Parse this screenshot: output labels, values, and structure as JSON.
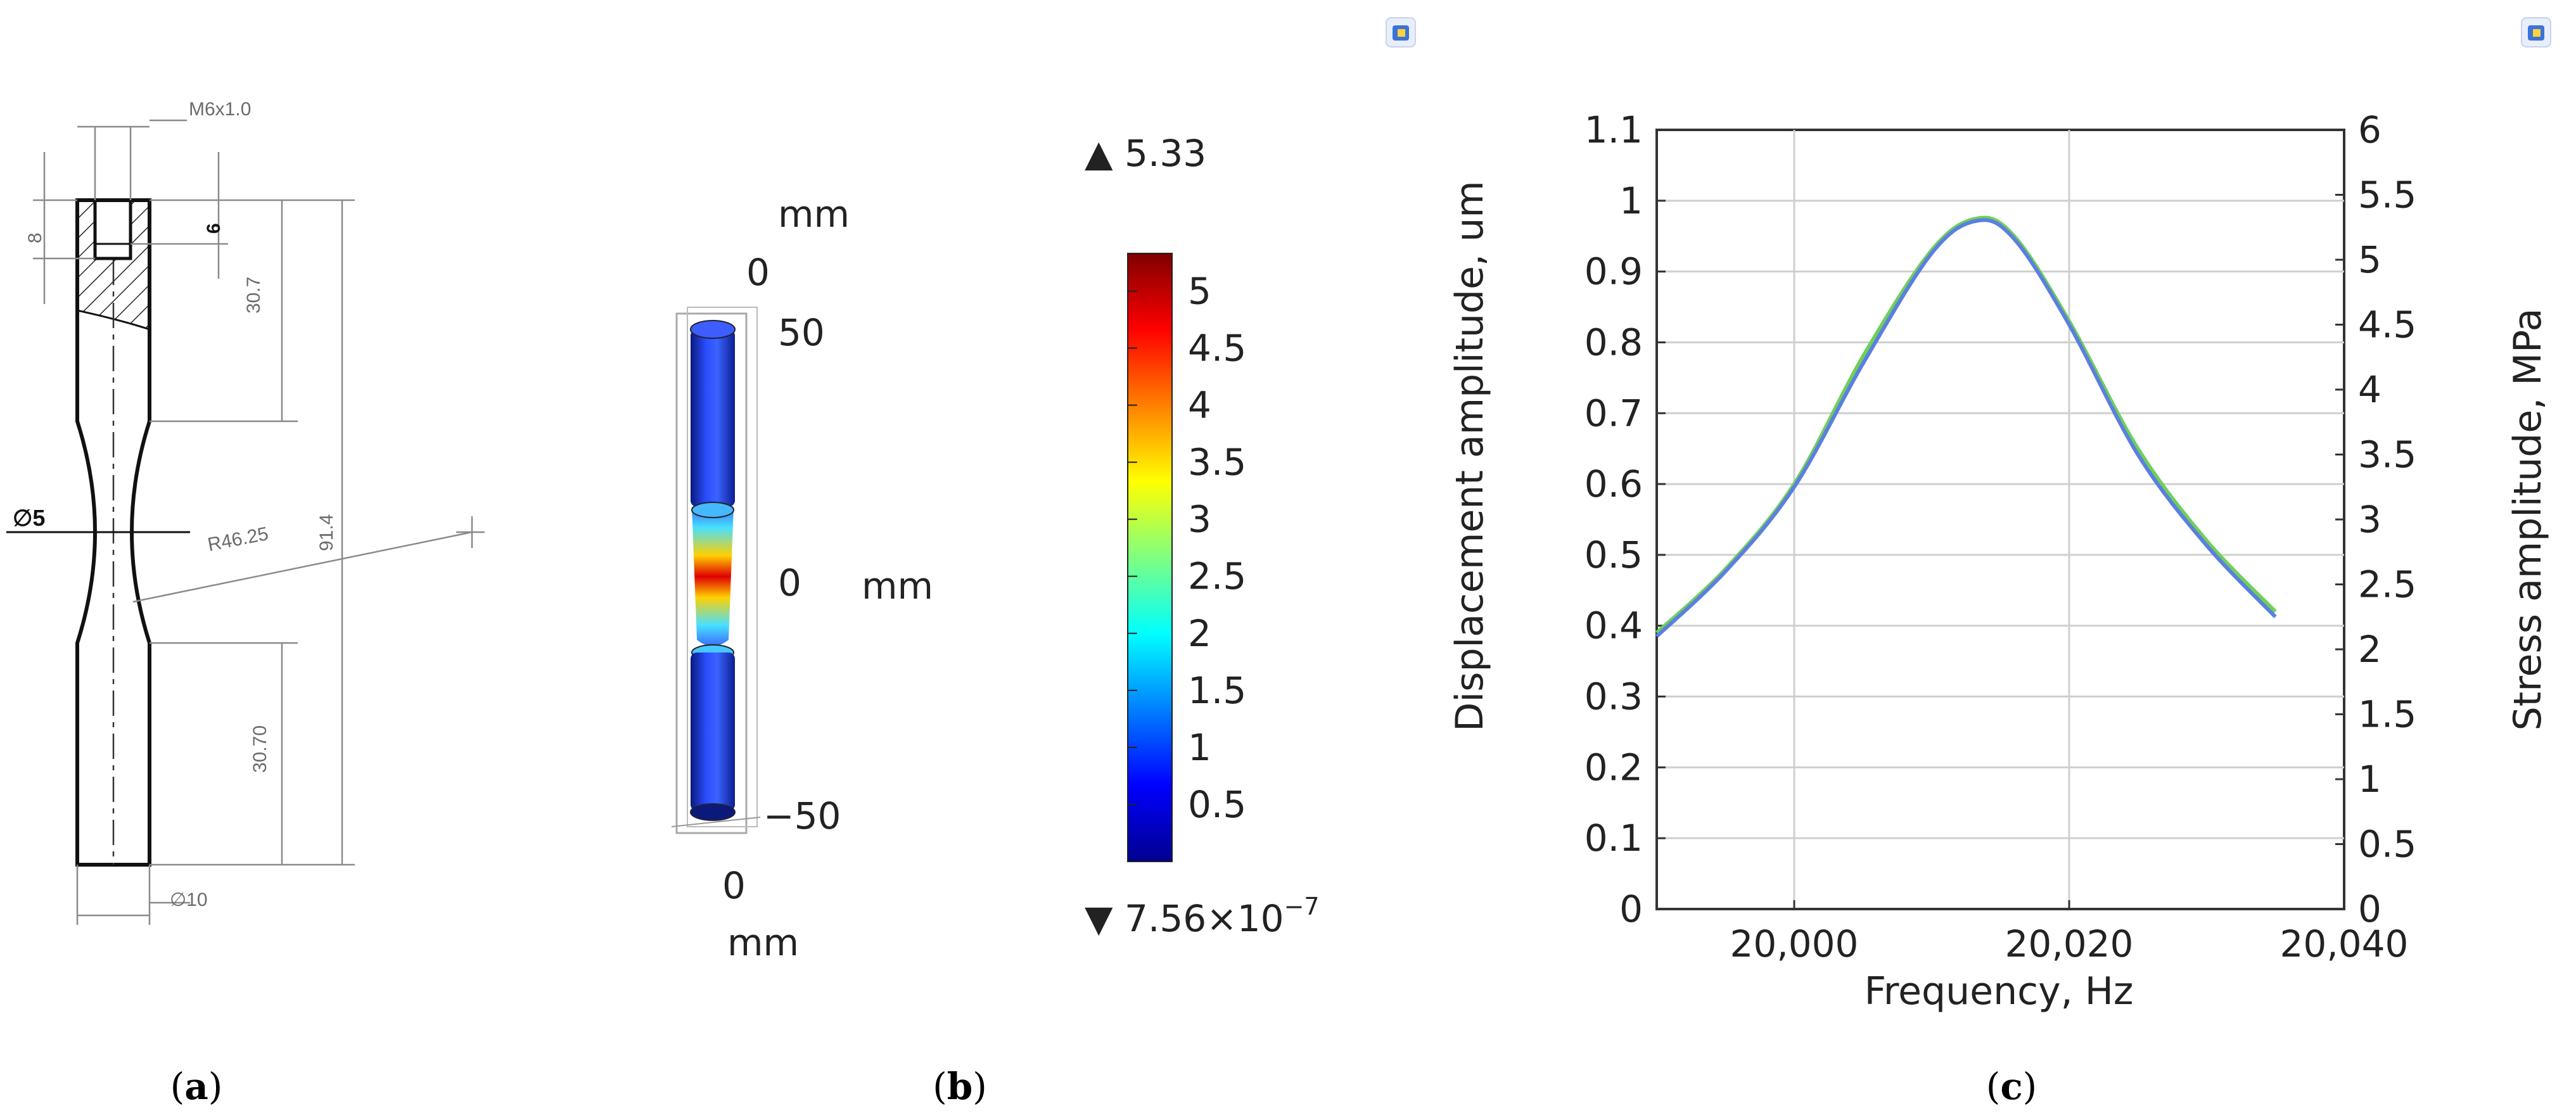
{
  "panel_a": {
    "caption_letter": "a",
    "dims": {
      "thread": "M6x1.0",
      "hole_depth": "6",
      "thread_len": "8",
      "top_len": "30.7",
      "total_len": "91.4",
      "radius": "R46.25",
      "neck_dia": "∅5",
      "bottom_len": "30.70",
      "shaft_dia": "∅10"
    }
  },
  "panel_b": {
    "caption_letter": "b",
    "axis_unit_top": "mm",
    "axis_unit_right": "mm",
    "axis_unit_bottom": "mm",
    "ticks": {
      "z0": "0",
      "z50": "50",
      "zm50": "−50",
      "y0": "0",
      "x0": "0"
    },
    "colorbar": {
      "max_label": "▲ 5.33",
      "min_label": "▼ 7.56×10",
      "min_exp": "−7",
      "ticks": [
        "5",
        "4.5",
        "4",
        "3.5",
        "3",
        "2.5",
        "2",
        "1.5",
        "1",
        "0.5"
      ],
      "tick_values": [
        5,
        4.5,
        4,
        3.5,
        3,
        2.5,
        2,
        1.5,
        1,
        0.5
      ],
      "range": [
        0,
        5.33
      ]
    }
  },
  "panel_c": {
    "caption_letter": "c",
    "chart_data": {
      "type": "line",
      "xlabel": "Frequency, Hz",
      "ylabel": "Displacement amplitude, um",
      "y2label": "Stress amplitude, MPa",
      "xlim": [
        19990,
        20040
      ],
      "ylim": [
        0,
        1.1
      ],
      "y2lim": [
        0,
        6
      ],
      "x_ticks": [
        20000,
        20020,
        20040
      ],
      "x_tick_labels": [
        "20,000",
        "20,020",
        "20,040"
      ],
      "y_ticks": [
        0,
        0.1,
        0.2,
        0.3,
        0.4,
        0.5,
        0.6,
        0.7,
        0.8,
        0.9,
        1,
        1.1
      ],
      "y_tick_labels": [
        "0",
        "0.1",
        "0.2",
        "0.3",
        "0.4",
        "0.5",
        "0.6",
        "0.7",
        "0.8",
        "0.9",
        "1",
        "1.1"
      ],
      "y2_ticks": [
        0,
        0.5,
        1,
        1.5,
        2,
        2.5,
        3,
        3.5,
        4,
        4.5,
        5,
        5.5,
        6
      ],
      "y2_tick_labels": [
        "0",
        "0.5",
        "1",
        "1.5",
        "2",
        "2.5",
        "3",
        "3.5",
        "4",
        "4.5",
        "5",
        "5.5",
        "6"
      ],
      "grid": true,
      "series": [
        {
          "name": "Displacement amplitude",
          "axis": "left",
          "color": "#6fcf5a",
          "x": [
            19990,
            19995,
            20000,
            20005,
            20010,
            20013.3,
            20016,
            20020,
            20025,
            20030,
            20035
          ],
          "y": [
            0.39,
            0.48,
            0.6,
            0.78,
            0.93,
            0.975,
            0.95,
            0.83,
            0.65,
            0.52,
            0.42
          ]
        },
        {
          "name": "Stress amplitude",
          "axis": "right",
          "color": "#5b7fe0",
          "x": [
            19990,
            19995,
            20000,
            20005,
            20010,
            20013.3,
            20016,
            20020,
            20025,
            20030,
            20035
          ],
          "y": [
            2.1,
            2.6,
            3.25,
            4.2,
            5.05,
            5.3,
            5.16,
            4.5,
            3.5,
            2.8,
            2.25
          ]
        }
      ]
    }
  }
}
